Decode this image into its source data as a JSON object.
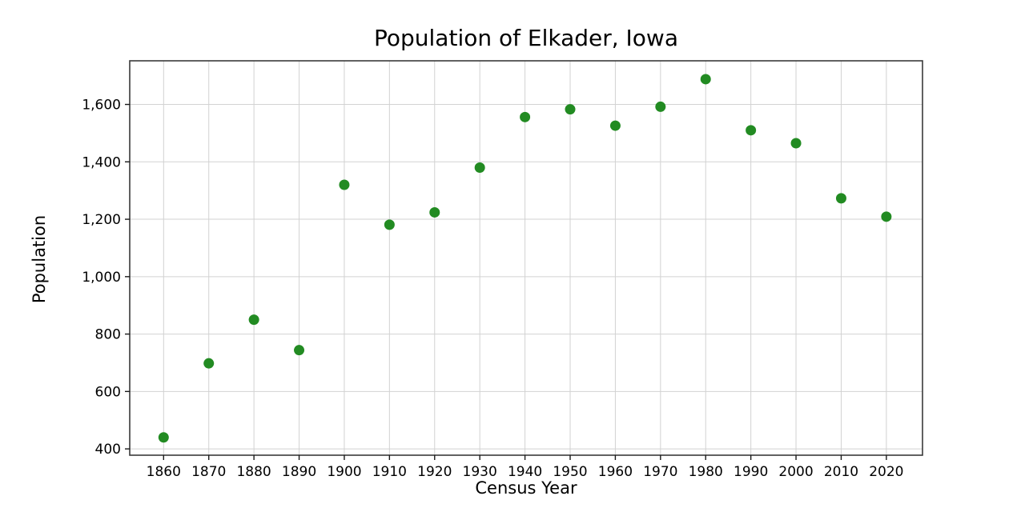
{
  "chart_data": {
    "type": "scatter",
    "title": "Population of Elkader, Iowa",
    "xlabel": "Census Year",
    "ylabel": "Population",
    "x": [
      1860,
      1870,
      1880,
      1890,
      1900,
      1910,
      1920,
      1930,
      1940,
      1950,
      1960,
      1970,
      1980,
      1990,
      2000,
      2010,
      2020
    ],
    "y": [
      440,
      698,
      850,
      744,
      1320,
      1181,
      1224,
      1380,
      1556,
      1583,
      1526,
      1592,
      1688,
      1510,
      1465,
      1273,
      1209
    ],
    "xticks": [
      1860,
      1870,
      1880,
      1890,
      1900,
      1910,
      1920,
      1930,
      1940,
      1950,
      1960,
      1970,
      1980,
      1990,
      2000,
      2010,
      2020
    ],
    "xtick_labels": [
      "1860",
      "1870",
      "1880",
      "1890",
      "1900",
      "1910",
      "1920",
      "1930",
      "1940",
      "1950",
      "1960",
      "1970",
      "1980",
      "1990",
      "2000",
      "2010",
      "2020"
    ],
    "yticks": [
      400,
      600,
      800,
      1000,
      1200,
      1400,
      1600
    ],
    "ytick_labels": [
      "400",
      "600",
      "800",
      "1,000",
      "1,200",
      "1,400",
      "1,600"
    ],
    "xlim": [
      1852.5,
      2028
    ],
    "ylim": [
      378,
      1752
    ],
    "grid": true,
    "legend": "none",
    "marker_color": "#228b22",
    "grid_color": "#d2d2d2",
    "spine_color": "#3a3a3a",
    "tick_color": "#1a1a1a",
    "marker_radius": 6.5
  }
}
